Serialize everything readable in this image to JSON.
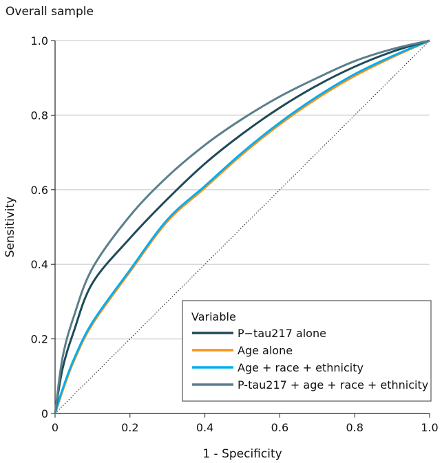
{
  "chart_data": {
    "type": "line",
    "title": "Overall sample",
    "xlabel": "1 - Specificity",
    "ylabel": "Sensitivity",
    "xlim": [
      0,
      1
    ],
    "ylim": [
      0,
      1
    ],
    "xticks": [
      "0",
      "0.2",
      "0.4",
      "0.6",
      "0.8",
      "1.0"
    ],
    "yticks": [
      "0",
      "0.2",
      "0.4",
      "0.6",
      "0.8",
      "1.0"
    ],
    "grid": "horizontal",
    "legend_title": "Variable",
    "legend_position": "bottom-right",
    "reference_line": "diagonal-dotted",
    "x": [
      0,
      0.02,
      0.05,
      0.1,
      0.2,
      0.3,
      0.4,
      0.5,
      0.6,
      0.7,
      0.8,
      0.9,
      1.0
    ],
    "series": [
      {
        "name": "P−tau217 alone",
        "color": "#1f4a58",
        "values": [
          0,
          0.12,
          0.22,
          0.35,
          0.47,
          0.575,
          0.67,
          0.75,
          0.82,
          0.88,
          0.93,
          0.97,
          1.0
        ]
      },
      {
        "name": "Age alone",
        "color": "#f7941d",
        "values": [
          0,
          0.06,
          0.14,
          0.24,
          0.38,
          0.515,
          0.605,
          0.695,
          0.775,
          0.845,
          0.905,
          0.955,
          1.0
        ]
      },
      {
        "name": "Age + race + ethnicity",
        "color": "#00aeef",
        "values": [
          0,
          0.065,
          0.145,
          0.245,
          0.385,
          0.52,
          0.61,
          0.7,
          0.78,
          0.85,
          0.91,
          0.958,
          1.0
        ]
      },
      {
        "name": "P-tau217 + age + race + ethnicity",
        "color": "#5b7f8b",
        "values": [
          0,
          0.15,
          0.26,
          0.39,
          0.53,
          0.635,
          0.72,
          0.79,
          0.85,
          0.9,
          0.945,
          0.977,
          1.0
        ]
      }
    ]
  }
}
